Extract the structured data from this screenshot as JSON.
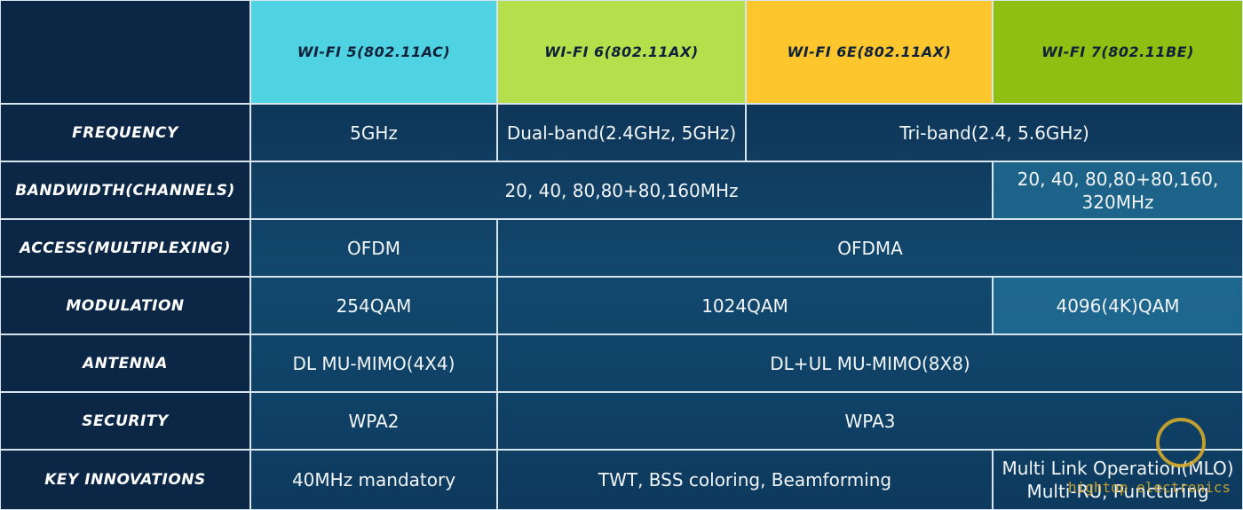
{
  "table": {
    "header": [
      "WI-FI 5(802.11AC)",
      "WI-FI 6(802.11AX)",
      "WI-FI 6E(802.11AX)",
      "WI-FI 7(802.11BE)"
    ],
    "rows": [
      {
        "label": "FREQUENCY",
        "cells": [
          "5GHz",
          "Dual-band(2.4GHz, 5GHz)",
          "Tri-band(2.4, 5.6GHz)"
        ]
      },
      {
        "label": "BANDWIDTH(CHANNELS)",
        "cells": [
          "20, 40, 80,80+80,160MHz",
          "20, 40, 80,80+80,160, 320MHz"
        ]
      },
      {
        "label": "ACCESS(MULTIPLEXING)",
        "cells": [
          "OFDM",
          "OFDMA"
        ]
      },
      {
        "label": "MODULATION",
        "cells": [
          "254QAM",
          "1024QAM",
          "4096(4K)QAM"
        ]
      },
      {
        "label": "ANTENNA",
        "cells": [
          "DL MU-MIMO(4X4)",
          "DL+UL MU-MIMO(8X8)"
        ]
      },
      {
        "label": "SECURITY",
        "cells": [
          "WPA2",
          "WPA3"
        ]
      },
      {
        "label": "KEY INNOVATIONS",
        "cells": [
          "40MHz mandatory",
          "TWT, BSS coloring, Beamforming",
          "Multi Link Operation(MLO) Multi-RU, Puncturing"
        ]
      }
    ]
  },
  "watermark": "hightop electronics"
}
